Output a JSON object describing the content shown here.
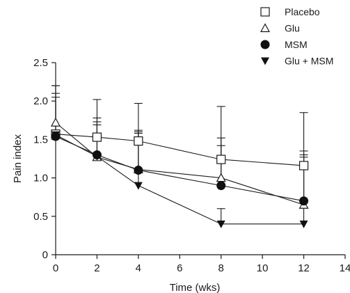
{
  "chart_data": {
    "type": "line",
    "title": "",
    "xlabel": "Time (wks)",
    "ylabel": "Pain index",
    "xlim": [
      0,
      14
    ],
    "ylim": [
      0,
      2.5
    ],
    "x_ticks": [
      "0",
      "2",
      "4",
      "6",
      "8",
      "10",
      "12",
      "14"
    ],
    "y_ticks": [
      "0",
      "0.5",
      "1.0",
      "1.5",
      "2.0",
      "2.5"
    ],
    "grid": false,
    "legend_position": "top-right",
    "x": [
      0,
      2,
      4,
      8,
      12
    ],
    "series": [
      {
        "name": "Placebo",
        "marker": "open-square",
        "values": [
          1.57,
          1.53,
          1.48,
          1.24,
          1.16
        ],
        "error_upper": [
          2.05,
          2.02,
          1.97,
          1.93,
          1.85
        ]
      },
      {
        "name": "Glu",
        "marker": "open-triangle-up",
        "values": [
          1.72,
          1.27,
          1.11,
          1.0,
          0.65
        ],
        "error_upper": [
          2.2,
          1.78,
          1.62,
          1.52,
          1.35
        ]
      },
      {
        "name": "MSM",
        "marker": "filled-circle",
        "values": [
          1.54,
          1.3,
          1.1,
          0.9,
          0.7
        ],
        "error_upper": [
          2.1,
          1.73,
          1.6,
          1.42,
          1.3
        ]
      },
      {
        "name": "Glu + MSM",
        "marker": "filled-triangle-down",
        "values": [
          1.56,
          1.28,
          0.9,
          0.4,
          0.4
        ],
        "error_upper": [
          2.2,
          1.69,
          1.58,
          0.6,
          1.27
        ]
      }
    ]
  }
}
